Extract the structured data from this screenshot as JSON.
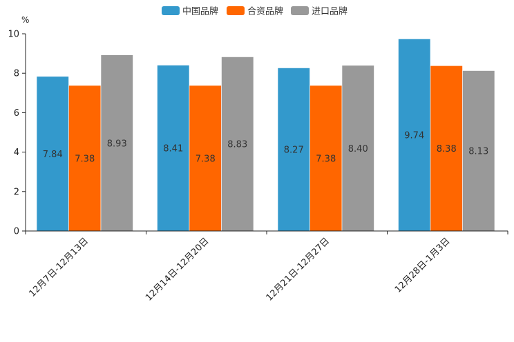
{
  "chart_data": {
    "type": "bar",
    "unit": "%",
    "categories": [
      "12月7日-12月13日",
      "12月14日-12月20日",
      "12月21日-12月27日",
      "12月28日-1月3日"
    ],
    "series": [
      {
        "name": "中国品牌",
        "color": "#3399cc",
        "values": [
          7.84,
          8.41,
          8.27,
          9.74
        ],
        "labels": [
          "7.84",
          "8.41",
          "8.27",
          "9.74"
        ]
      },
      {
        "name": "合资品牌",
        "color": "#ff6600",
        "values": [
          7.38,
          7.38,
          7.38,
          8.38
        ],
        "labels": [
          "7.38",
          "7.38",
          "7.38",
          "8.38"
        ]
      },
      {
        "name": "进口品牌",
        "color": "#999999",
        "values": [
          8.93,
          8.83,
          8.4,
          8.13
        ],
        "labels": [
          "8.93",
          "8.83",
          "8.40",
          "8.13"
        ]
      }
    ],
    "ylim": [
      0,
      10
    ],
    "yticks": [
      "0",
      "2",
      "4",
      "6",
      "8",
      "10"
    ],
    "legend_position": "top-center",
    "grid": false
  }
}
